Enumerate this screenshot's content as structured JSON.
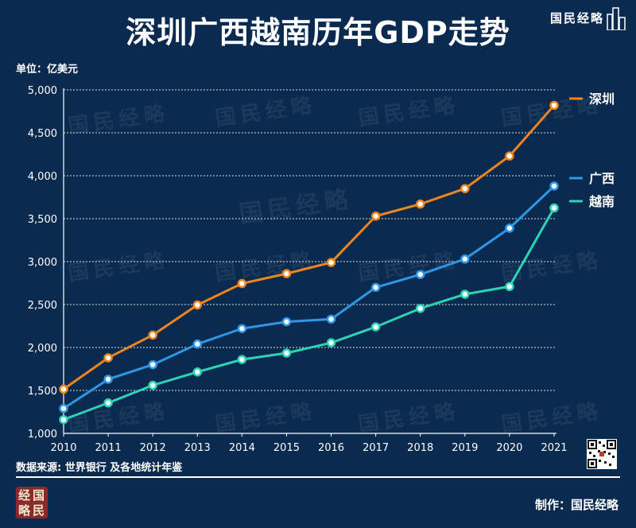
{
  "header": {
    "title": "深圳广西越南历年GDP走势",
    "brand": "国民经略",
    "unit_label": "单位：亿美元"
  },
  "footer": {
    "source": "数据来源: 世界银行 及各地统计年鉴",
    "maker": "制作：国民经略",
    "logo_chars": [
      "经",
      "国",
      "略",
      "民"
    ]
  },
  "watermark": "国民经略",
  "chart_data": {
    "type": "line",
    "title": "深圳广西越南历年GDP走势",
    "ylabel": "单位：亿美元",
    "xlabel": "",
    "ylim": [
      1000,
      5000
    ],
    "yticks": [
      1000,
      1500,
      2000,
      2500,
      3000,
      3500,
      4000,
      4500,
      5000
    ],
    "ytick_labels": [
      "1,000",
      "1,500",
      "2,000",
      "2,500",
      "3,000",
      "3,500",
      "4,000",
      "4,500",
      "5,000"
    ],
    "categories": [
      "2010",
      "2011",
      "2012",
      "2013",
      "2014",
      "2015",
      "2016",
      "2017",
      "2018",
      "2019",
      "2020",
      "2021"
    ],
    "grid": true,
    "series": [
      {
        "name": "深圳",
        "color": "#f0861b",
        "values": [
          1515,
          1880,
          2145,
          2495,
          2745,
          2860,
          2990,
          3530,
          3670,
          3850,
          4230,
          4820
        ]
      },
      {
        "name": "广西",
        "color": "#2e97e8",
        "values": [
          1290,
          1630,
          1800,
          2040,
          2220,
          2300,
          2330,
          2700,
          2850,
          3030,
          3390,
          3880
        ]
      },
      {
        "name": "越南",
        "color": "#2cd3b4",
        "values": [
          1160,
          1355,
          1560,
          1715,
          1860,
          1935,
          2055,
          2240,
          2455,
          2620,
          2710,
          3625
        ]
      }
    ]
  }
}
